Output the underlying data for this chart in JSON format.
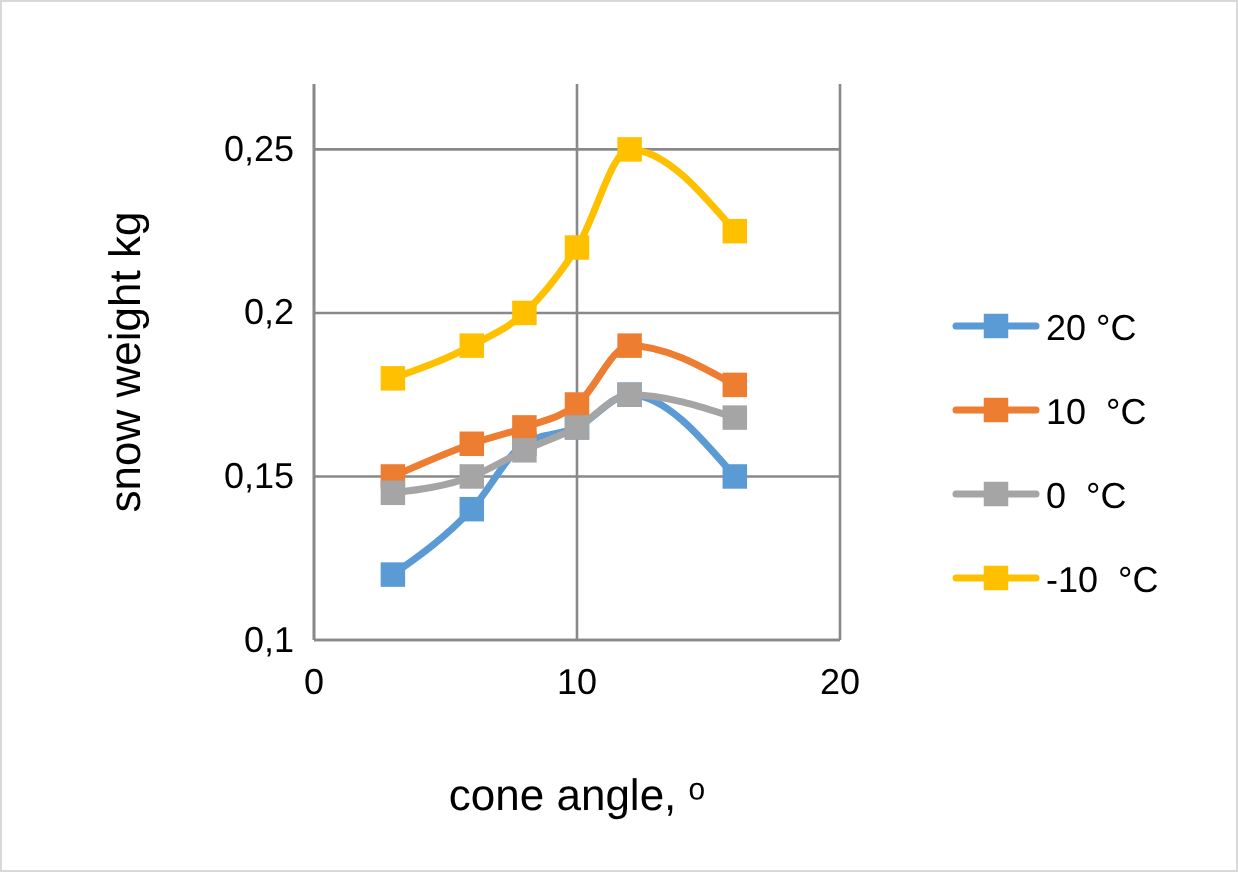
{
  "chart_data": {
    "type": "line",
    "xlabel": "cone angle, ᵒ",
    "ylabel": "snow weight kg",
    "x": [
      3,
      6,
      8,
      10,
      12,
      16
    ],
    "series": [
      {
        "name": "20 °C",
        "color": "#5b9bd5",
        "values": [
          0.12,
          0.14,
          0.16,
          0.165,
          0.175,
          0.15
        ]
      },
      {
        "name": "10  °C",
        "color": "#ed7d31",
        "values": [
          0.15,
          0.16,
          0.165,
          0.172,
          0.19,
          0.178
        ]
      },
      {
        "name": "0  °C",
        "color": "#a5a5a5",
        "values": [
          0.145,
          0.15,
          0.158,
          0.165,
          0.175,
          0.168
        ]
      },
      {
        "name": "-10  °C",
        "color": "#ffc000",
        "values": [
          0.18,
          0.19,
          0.2,
          0.22,
          0.25,
          0.225
        ]
      }
    ],
    "xlim": [
      0,
      20
    ],
    "xticks": [
      0,
      10,
      20
    ],
    "ylim": [
      0.1,
      0.27
    ],
    "yticks": [
      {
        "value": 0.1,
        "label": "0,1"
      },
      {
        "value": 0.15,
        "label": "0,15"
      },
      {
        "value": 0.2,
        "label": "0,2"
      },
      {
        "value": 0.25,
        "label": "0,25"
      }
    ],
    "grid": true,
    "legend": "right",
    "marker": "square",
    "line_style": "solid"
  }
}
